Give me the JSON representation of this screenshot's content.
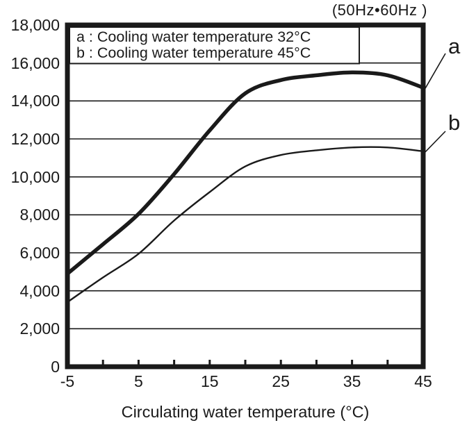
{
  "frequency_note": "(50Hz•60Hz )",
  "legend": {
    "entries": [
      {
        "key": "a",
        "text": "a : Cooling water temperature 32°C"
      },
      {
        "key": "b",
        "text": "b : Cooling water temperature 45°C"
      }
    ]
  },
  "curve_callouts": {
    "a": "a",
    "b": "b"
  },
  "x_axis": {
    "title": "Circulating water temperature (°C)",
    "labeled_ticks": [
      {
        "value": -5,
        "label": "-5"
      },
      {
        "value": 5,
        "label": "5"
      },
      {
        "value": 15,
        "label": "15"
      },
      {
        "value": 25,
        "label": "25"
      },
      {
        "value": 35,
        "label": "35"
      },
      {
        "value": 45,
        "label": "45"
      }
    ]
  },
  "y_axis": {
    "labeled_ticks": [
      {
        "value": 0,
        "label": "0"
      },
      {
        "value": 2000,
        "label": "2,000"
      },
      {
        "value": 4000,
        "label": "4,000"
      },
      {
        "value": 6000,
        "label": "6,000"
      },
      {
        "value": 8000,
        "label": "8,000"
      },
      {
        "value": 10000,
        "label": "10,000"
      },
      {
        "value": 12000,
        "label": "12,000"
      },
      {
        "value": 14000,
        "label": "14,000"
      },
      {
        "value": 16000,
        "label": "16,000"
      },
      {
        "value": 18000,
        "label": "18,000"
      }
    ]
  },
  "colors": {
    "ink": "#1a1a1a",
    "background": "#ffffff"
  },
  "chart_data": {
    "type": "line",
    "title": "(50Hz•60Hz )",
    "xlabel": "Circulating water temperature (°C)",
    "ylabel": "",
    "xlim": [
      -5,
      45
    ],
    "ylim": [
      0,
      18000
    ],
    "x_minor_tick_step": 5,
    "y_gridline_step": 2000,
    "grid": "horizontal",
    "legend_position": "top-left-inside",
    "x": [
      -5,
      0,
      5,
      10,
      15,
      20,
      25,
      30,
      35,
      40,
      45
    ],
    "series": [
      {
        "name": "a",
        "description": "Cooling water temperature 32°C",
        "stroke_width": 5.5,
        "values": [
          4900,
          6450,
          8050,
          10150,
          12450,
          14400,
          15100,
          15350,
          15500,
          15350,
          14700
        ]
      },
      {
        "name": "b",
        "description": "Cooling water temperature 45°C",
        "stroke_width": 2.4,
        "values": [
          3400,
          4700,
          5950,
          7700,
          9200,
          10550,
          11150,
          11400,
          11550,
          11550,
          11350
        ]
      }
    ]
  }
}
